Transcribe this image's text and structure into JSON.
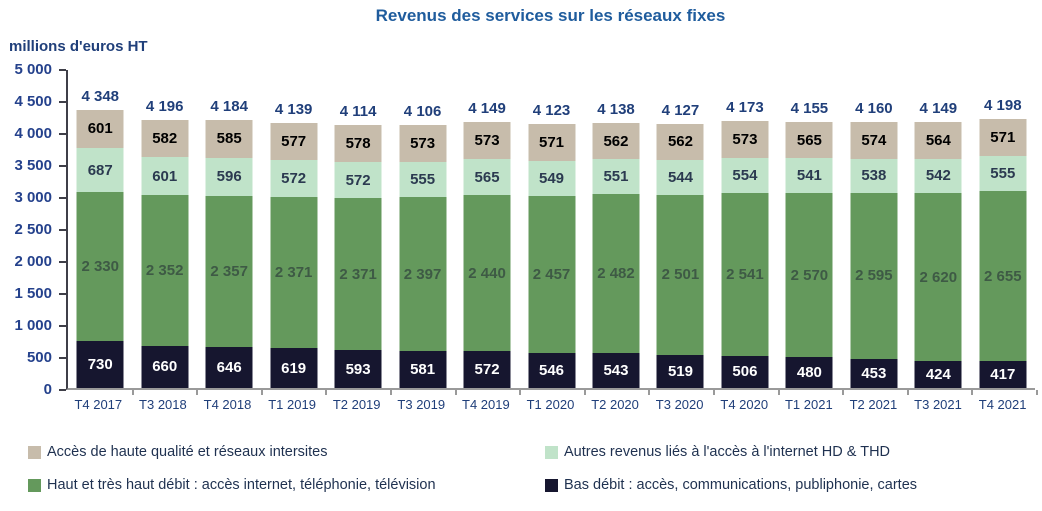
{
  "header": {
    "title": "Revenus des services sur les réseaux fixes"
  },
  "chart_data": {
    "type": "bar",
    "stacked": true,
    "title": "Revenus des services sur les réseaux fixes",
    "ylabel": "millions d'euros HT",
    "xlabel": "",
    "ylim": [
      0,
      5000
    ],
    "ytick_step": 500,
    "grid": false,
    "legend_position": "bottom",
    "categories": [
      "T4 2017",
      "T3 2018",
      "T4 2018",
      "T1 2019",
      "T2 2019",
      "T3 2019",
      "T4 2019",
      "T1 2020",
      "T2 2020",
      "T3 2020",
      "T4 2020",
      "T1 2021",
      "T2 2021",
      "T3 2021",
      "T4 2021"
    ],
    "series": [
      {
        "name": "Bas débit : accès, communications, publiphonie, cartes",
        "color": "#16162f",
        "label_color": "#ffffff",
        "values": [
          730,
          660,
          646,
          619,
          593,
          581,
          572,
          546,
          543,
          519,
          506,
          480,
          453,
          424,
          417
        ]
      },
      {
        "name": "Haut et très haut débit : accès internet, téléphonie, télévision",
        "color": "#64995c",
        "label_color": "#3e5a45",
        "values": [
          2330,
          2352,
          2357,
          2371,
          2371,
          2397,
          2440,
          2457,
          2482,
          2501,
          2541,
          2570,
          2595,
          2620,
          2655
        ]
      },
      {
        "name": "Autres revenus liés à l'accès à l'internet HD & THD",
        "color": "#c0e3c9",
        "label_color": "#2b3a50",
        "values": [
          687,
          601,
          596,
          572,
          572,
          555,
          565,
          549,
          551,
          544,
          554,
          541,
          538,
          542,
          555
        ]
      },
      {
        "name": "Accès de haute qualité et réseaux intersites",
        "color": "#c7bcab",
        "label_color": "#000000",
        "values": [
          601,
          582,
          585,
          577,
          578,
          573,
          573,
          571,
          562,
          562,
          573,
          565,
          574,
          564,
          571
        ]
      }
    ],
    "totals": [
      4348,
      4196,
      4184,
      4139,
      4114,
      4106,
      4149,
      4123,
      4138,
      4127,
      4173,
      4155,
      4160,
      4149,
      4198
    ],
    "legend_display_order": [
      3,
      2,
      1,
      0
    ]
  }
}
